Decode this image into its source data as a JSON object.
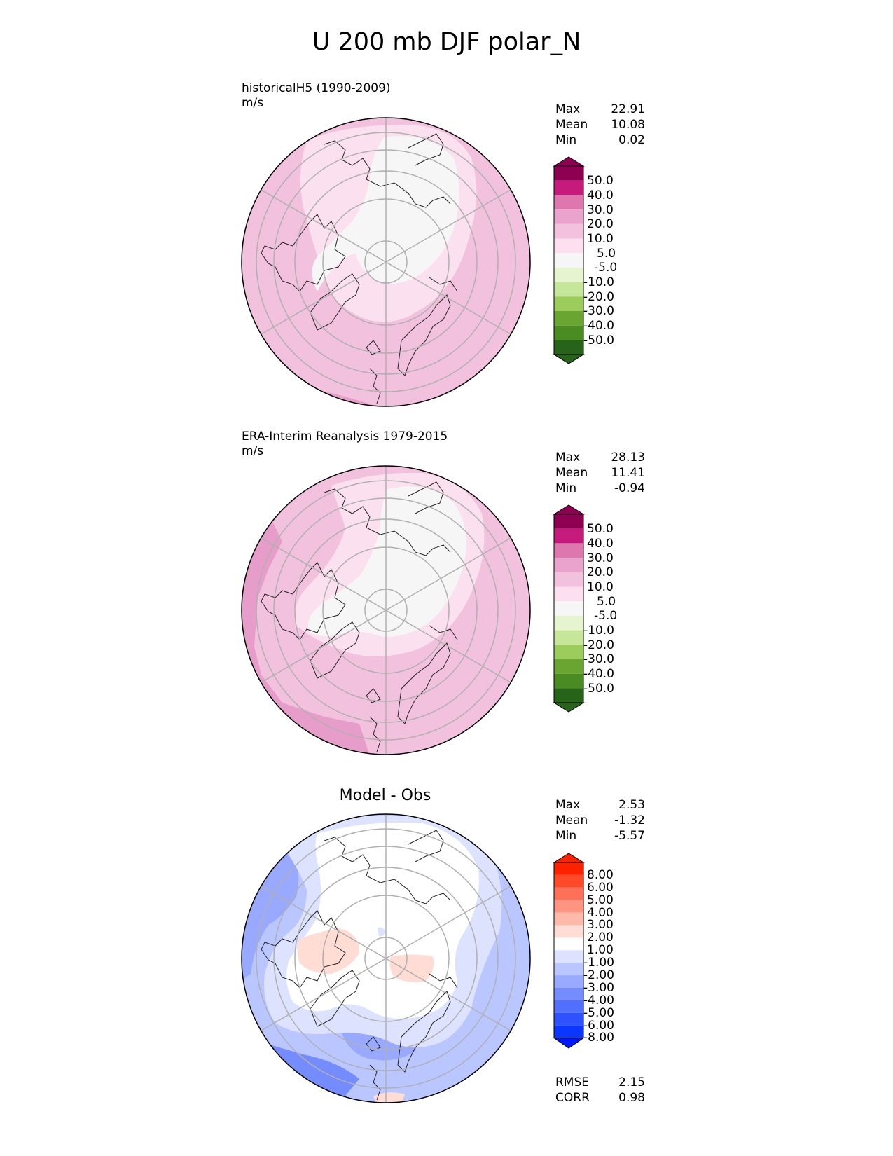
{
  "title": "U 200 mb DJF polar_N",
  "panels": [
    {
      "id": "model",
      "title": "historicalH5 (1990-2009)",
      "units": "m/s",
      "stats": {
        "max_label": "Max",
        "max": "22.91",
        "mean_label": "Mean",
        "mean": "10.08",
        "min_label": "Min",
        "min": "0.02"
      },
      "colorbar": {
        "ticks": [
          "50.0",
          "40.0",
          "30.0",
          "20.0",
          "10.0",
          "5.0",
          "-5.0",
          "-10.0",
          "-20.0",
          "-30.0",
          "-40.0",
          "-50.0"
        ],
        "colors": [
          "#8e0152",
          "#c51b7d",
          "#de77ae",
          "#f1b6da",
          "#fde0ef",
          "#f7f7f7",
          "#e6f5d0",
          "#b8e186",
          "#7fbc41",
          "#4d9221",
          "#276419"
        ]
      }
    },
    {
      "id": "obs",
      "title": "ERA-Interim Reanalysis 1979-2015",
      "units": "m/s",
      "stats": {
        "max_label": "Max",
        "max": "28.13",
        "mean_label": "Mean",
        "mean": "11.41",
        "min_label": "Min",
        "min": "-0.94"
      },
      "colorbar": {
        "ticks": [
          "50.0",
          "40.0",
          "30.0",
          "20.0",
          "10.0",
          "5.0",
          "-5.0",
          "-10.0",
          "-20.0",
          "-30.0",
          "-40.0",
          "-50.0"
        ],
        "colors": [
          "#8e0152",
          "#c51b7d",
          "#de77ae",
          "#f1b6da",
          "#fde0ef",
          "#f7f7f7",
          "#e6f5d0",
          "#b8e186",
          "#7fbc41",
          "#4d9221",
          "#276419"
        ]
      }
    },
    {
      "id": "diff",
      "title": "Model - Obs",
      "stats": {
        "max_label": "Max",
        "max": "2.53",
        "mean_label": "Mean",
        "mean": "-1.32",
        "min_label": "Min",
        "min": "-5.57"
      },
      "colorbar": {
        "ticks": [
          "8.00",
          "6.00",
          "5.00",
          "4.00",
          "3.00",
          "2.00",
          "1.00",
          "-1.00",
          "-2.00",
          "-3.00",
          "-4.00",
          "-5.00",
          "-6.00",
          "-8.00"
        ],
        "colors": [
          "#ff2200",
          "#ff4a2a",
          "#ff7058",
          "#ff9580",
          "#ffb9a8",
          "#ffddd5",
          "#ffffff",
          "#dde3ff",
          "#bac6ff",
          "#98a9ff",
          "#758cff",
          "#526fff",
          "#2f52ff",
          "#0b36ff",
          "#0018ff"
        ]
      },
      "metrics": {
        "rmse_label": "RMSE",
        "rmse": "2.15",
        "corr_label": "CORR",
        "corr": "0.98"
      }
    }
  ]
}
